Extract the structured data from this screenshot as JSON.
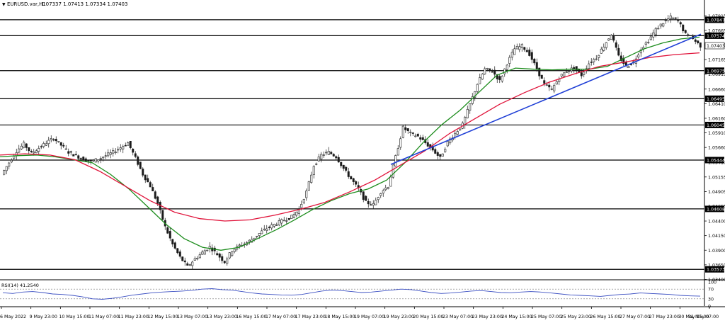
{
  "header": {
    "symbol": "EURUSD.var,H1",
    "quote": "1.07337 1.07413 1.07334 1.07403"
  },
  "colors": {
    "background": "#ffffff",
    "candle": "#1a1a1a",
    "level_line": "#000000",
    "ma_fast": "#1c8c1c",
    "ma_slow": "#e0133a",
    "trendline": "#1f3fd6",
    "rsi": "#3b4fc2",
    "axis_text": "#000000"
  },
  "chart_data": [
    {
      "type": "line",
      "panel": "price",
      "ylim": [
        1.0343,
        1.0804
      ],
      "y_ticks": [
        "1.07915",
        "1.07665",
        "1.07415",
        "1.07165",
        "1.06915",
        "1.06660",
        "1.06410",
        "1.06160",
        "1.05910",
        "1.05660",
        "1.05410",
        "1.05155",
        "1.04905",
        "1.04655",
        "1.04400",
        "1.04150",
        "1.03900",
        "1.03650",
        "1.03400"
      ],
      "x_ticks": [
        "6 May 2022",
        "9 May 23:00",
        "10 May 15:00",
        "11 May 07:00",
        "11 May 23:00",
        "12 May 15:00",
        "13 May 07:00",
        "13 May 23:00",
        "16 May 15:00",
        "17 May 07:00",
        "17 May 23:00",
        "18 May 15:00",
        "19 May 07:00",
        "19 May 23:00",
        "20 May 15:00",
        "23 May 07:00",
        "23 May 23:00",
        "24 May 15:00",
        "25 May 07:00",
        "25 May 23:00",
        "26 May 15:00",
        "27 May 07:00",
        "27 May 23:00",
        "30 May 15:00",
        "31 May 07:00"
      ],
      "horizontal_levels": [
        {
          "label": "1.07847",
          "value": 1.07847
        },
        {
          "label": "1.07574",
          "value": 1.07574
        },
        {
          "label": "1.06975",
          "value": 1.06975
        },
        {
          "label": "1.06495",
          "value": 1.06495
        },
        {
          "label": "1.06045",
          "value": 1.06045
        },
        {
          "label": "1.05444",
          "value": 1.05444
        },
        {
          "label": "1.04608",
          "value": 1.04608
        },
        {
          "label": "1.03573",
          "value": 1.03573
        }
      ],
      "current_price": {
        "label": "1.07403",
        "value": 1.07403
      },
      "price_close": [
        1.052,
        1.054,
        1.056,
        1.0572,
        1.0556,
        1.0565,
        1.0574,
        1.0582,
        1.057,
        1.0558,
        1.0552,
        1.0546,
        1.0542,
        1.0546,
        1.0552,
        1.0558,
        1.0566,
        1.0574,
        1.0548,
        1.052,
        1.05,
        1.047,
        1.043,
        1.04,
        1.0378,
        1.0362,
        1.0375,
        1.0386,
        1.0396,
        1.0383,
        1.037,
        1.039,
        1.0398,
        1.0403,
        1.0412,
        1.0422,
        1.043,
        1.0436,
        1.0442,
        1.0447,
        1.046,
        1.049,
        1.0535,
        1.0553,
        1.0558,
        1.055,
        1.053,
        1.0512,
        1.0495,
        1.0472,
        1.0468,
        1.049,
        1.05,
        1.055,
        1.06,
        1.059,
        1.0585,
        1.0574,
        1.0562,
        1.0548,
        1.0575,
        1.059,
        1.0605,
        1.064,
        1.0675,
        1.07,
        1.0697,
        1.068,
        1.071,
        1.0735,
        1.074,
        1.0726,
        1.07,
        1.0674,
        1.0665,
        1.0686,
        1.0697,
        1.0702,
        1.069,
        1.071,
        1.072,
        1.074,
        1.076,
        1.0722,
        1.0705,
        1.0712,
        1.0735,
        1.0749,
        1.0768,
        1.078,
        1.0789,
        1.0783,
        1.076,
        1.0752,
        1.074
      ],
      "series": [
        {
          "name": "",
          "style": "green",
          "values": [
            1.055,
            1.0552,
            1.0553,
            1.055,
            1.0545,
            1.054,
            1.052,
            1.0495,
            1.0465,
            1.0435,
            1.041,
            1.0395,
            1.039,
            1.0395,
            1.041,
            1.0425,
            1.0442,
            1.046,
            1.0475,
            1.0487,
            1.0495,
            1.051,
            1.054,
            1.0575,
            1.0605,
            1.063,
            1.066,
            1.069,
            1.0702,
            1.07,
            1.0699,
            1.07,
            1.07,
            1.0705,
            1.072,
            1.0735,
            1.0745,
            1.0752,
            1.0755
          ]
        },
        {
          "name": "",
          "style": "red",
          "values": [
            1.0553,
            1.0555,
            1.0553,
            1.0545,
            1.0525,
            1.05,
            1.0475,
            1.0455,
            1.0444,
            1.044,
            1.0442,
            1.045,
            1.046,
            1.0472,
            1.049,
            1.051,
            1.0535,
            1.056,
            1.059,
            1.0615,
            1.064,
            1.066,
            1.0678,
            1.0692,
            1.0705,
            1.0712,
            1.072,
            1.0725,
            1.0728
          ]
        },
        {
          "name": "",
          "style": "trendline",
          "values": [
            1.0537,
            1.076
          ]
        }
      ]
    },
    {
      "type": "line",
      "panel": "rsi",
      "title": "RSI(14) 41.2540",
      "ylim": [
        0,
        100
      ],
      "y_ticks": [
        "100",
        "70",
        "30",
        "0"
      ],
      "levels": [
        70,
        30
      ],
      "values": [
        55,
        52,
        58,
        60,
        56,
        50,
        48,
        44,
        38,
        30,
        28,
        32,
        38,
        45,
        50,
        55,
        58,
        60,
        62,
        65,
        70,
        72,
        68,
        66,
        60,
        54,
        50,
        48,
        46,
        45,
        48,
        55,
        62,
        66,
        64,
        60,
        56,
        58,
        62,
        66,
        70,
        68,
        62,
        56,
        52,
        54,
        58,
        62,
        64,
        60,
        56,
        55,
        58,
        60,
        58,
        54,
        50,
        46,
        44,
        42,
        40,
        44,
        48,
        50,
        54,
        52,
        50,
        48,
        44,
        42,
        41
      ]
    }
  ]
}
